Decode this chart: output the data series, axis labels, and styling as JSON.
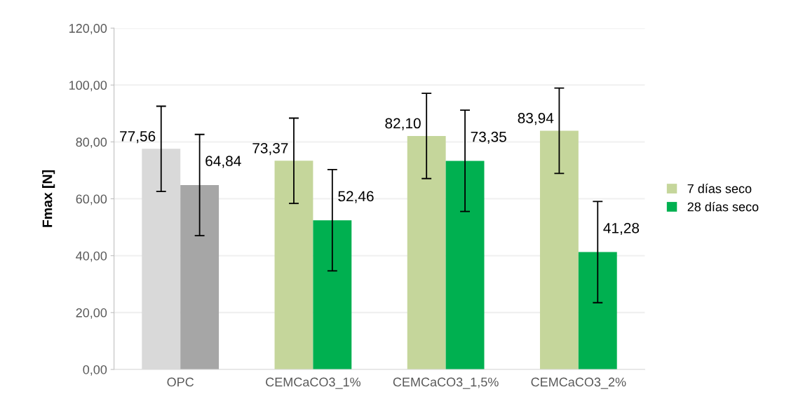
{
  "chart_data": {
    "type": "bar",
    "ylabel": "Fmax [N]",
    "categories": [
      "OPC",
      "CEMCaCO3_1%",
      "CEMCaCO3_1,5%",
      "CEMCaCO3_2%"
    ],
    "series": [
      {
        "name": "7 días seco",
        "color": "#c5d69b",
        "colors": [
          "#d9d9d9",
          "#c5d69b",
          "#c5d69b",
          "#c5d69b"
        ],
        "values": [
          77.56,
          73.37,
          82.1,
          83.94
        ],
        "errors": [
          15.0,
          15.0,
          15.0,
          15.0
        ],
        "value_labels": [
          "77,56",
          "73,37",
          "82,10",
          "83,94"
        ]
      },
      {
        "name": "28 días seco",
        "color": "#00b050",
        "colors": [
          "#a6a6a6",
          "#00b050",
          "#00b050",
          "#00b050"
        ],
        "values": [
          64.84,
          52.46,
          73.35,
          41.28
        ],
        "errors": [
          17.8,
          17.8,
          17.8,
          17.8
        ],
        "value_labels": [
          "64,84",
          "52,46",
          "73,35",
          "41,28"
        ]
      }
    ],
    "ylim": [
      0,
      120
    ],
    "yticks": [
      {
        "value": 0,
        "label": "0,00"
      },
      {
        "value": 20,
        "label": "20,00"
      },
      {
        "value": 40,
        "label": "40,00"
      },
      {
        "value": 60,
        "label": "60,00"
      },
      {
        "value": 80,
        "label": "80,00"
      },
      {
        "value": 100,
        "label": "100,00"
      },
      {
        "value": 120,
        "label": "120,00"
      }
    ],
    "grid": "y",
    "legend": "right"
  }
}
